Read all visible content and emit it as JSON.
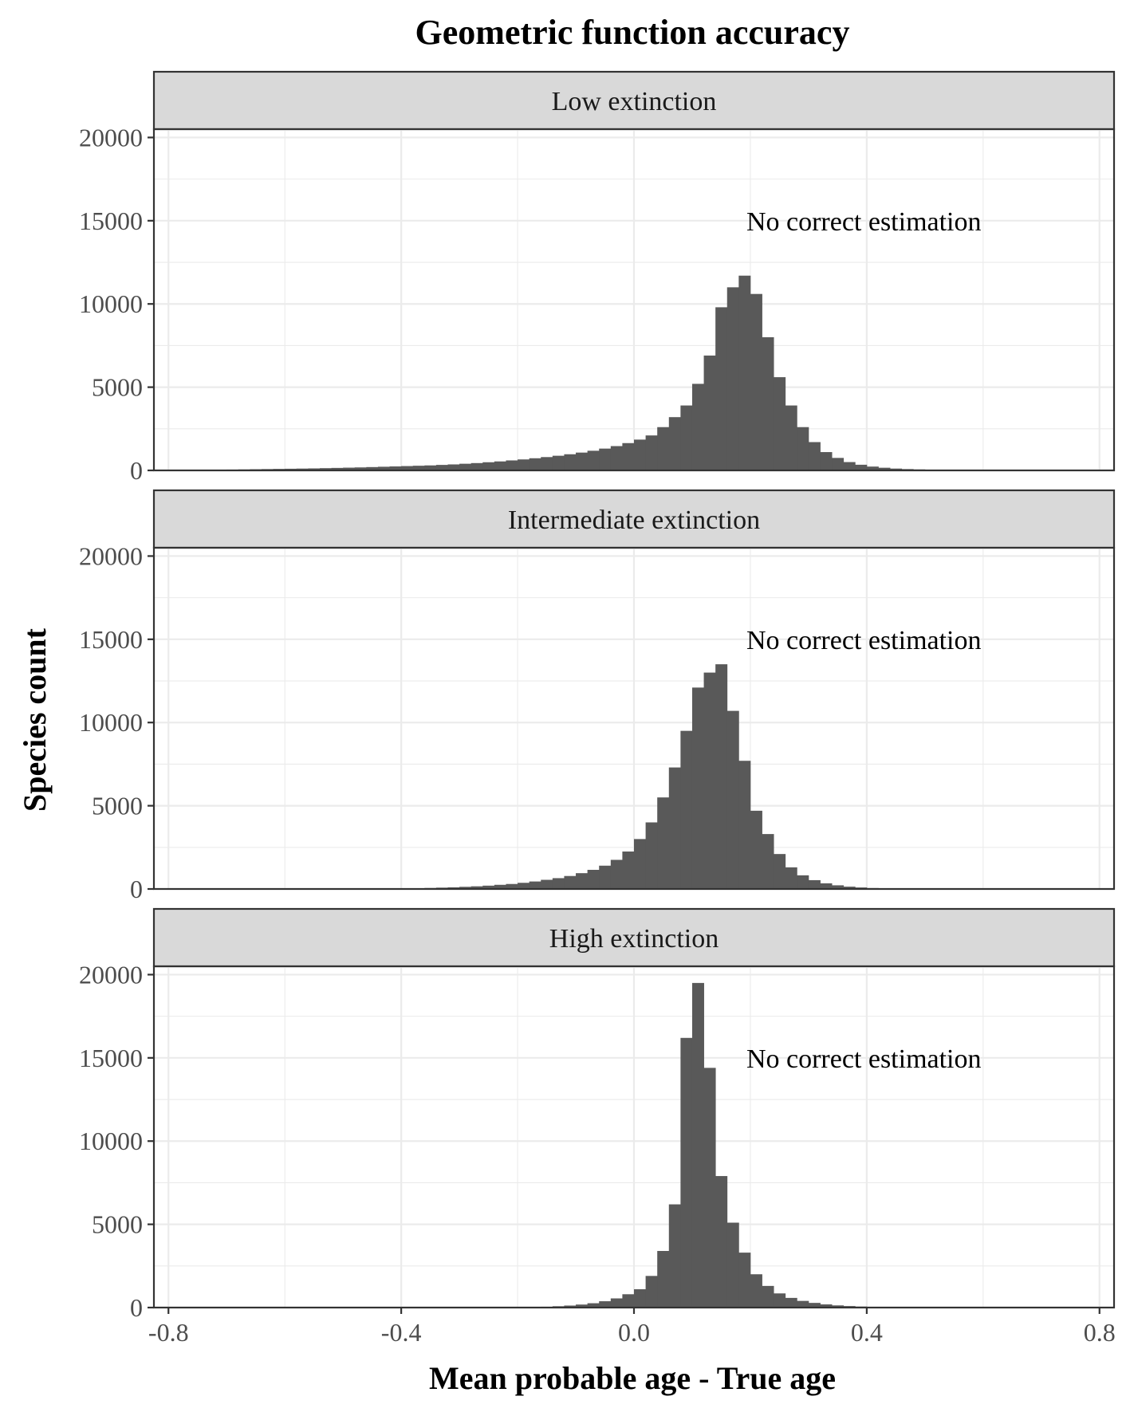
{
  "chart_data": {
    "type": "bar",
    "title": "Geometric function accuracy",
    "xlabel": "Mean probable age - True age",
    "ylabel": "Species count",
    "xlim": [
      -0.825,
      0.825
    ],
    "ylim": [
      0,
      20500
    ],
    "x_ticks": [
      -0.8,
      -0.4,
      0.0,
      0.4,
      0.8
    ],
    "x_tick_labels": [
      "-0.8",
      "-0.4",
      "0.0",
      "0.4",
      "0.8"
    ],
    "y_ticks": [
      0,
      5000,
      10000,
      15000,
      20000
    ],
    "y_tick_labels": [
      "0",
      "5000",
      "10000",
      "15000",
      "20000"
    ],
    "grid": true,
    "bin_width": 0.02,
    "bin_start": -0.74,
    "panels": [
      {
        "label": "Low extinction",
        "annotation": "No correct estimation",
        "values": [
          30,
          40,
          50,
          60,
          70,
          80,
          90,
          100,
          110,
          120,
          135,
          150,
          165,
          180,
          200,
          220,
          240,
          260,
          280,
          300,
          330,
          360,
          400,
          440,
          490,
          540,
          600,
          660,
          730,
          800,
          880,
          970,
          1070,
          1180,
          1310,
          1460,
          1640,
          1850,
          2100,
          2600,
          3200,
          3900,
          5200,
          6900,
          9800,
          11000,
          11700,
          10600,
          8000,
          5600,
          3900,
          2600,
          1700,
          1100,
          750,
          500,
          340,
          230,
          160,
          110,
          80,
          60,
          45,
          35,
          25,
          20,
          15,
          12,
          10,
          8,
          6,
          4,
          3
        ]
      },
      {
        "label": "Intermediate extinction",
        "annotation": "No correct estimation",
        "values": [
          0,
          0,
          0,
          0,
          0,
          0,
          0,
          0,
          0,
          0,
          0,
          0,
          0,
          0,
          10,
          15,
          25,
          35,
          45,
          60,
          80,
          100,
          130,
          160,
          200,
          250,
          300,
          370,
          450,
          550,
          650,
          780,
          950,
          1150,
          1400,
          1750,
          2250,
          3000,
          4000,
          5500,
          7300,
          9500,
          12100,
          13000,
          13500,
          10700,
          7700,
          4700,
          3300,
          2100,
          1300,
          820,
          530,
          340,
          220,
          140,
          90,
          55,
          35,
          20,
          10,
          5
        ]
      },
      {
        "label": "High extinction",
        "annotation": "No correct estimation",
        "values": [
          0,
          0,
          0,
          0,
          0,
          0,
          0,
          0,
          0,
          0,
          0,
          0,
          0,
          0,
          0,
          0,
          0,
          0,
          0,
          0,
          0,
          0,
          0,
          0,
          0,
          0,
          0,
          0,
          30,
          50,
          80,
          120,
          180,
          260,
          380,
          550,
          800,
          1100,
          1900,
          3400,
          6200,
          16200,
          19500,
          14400,
          7900,
          5100,
          3300,
          2000,
          1300,
          850,
          580,
          400,
          280,
          190,
          130,
          90,
          60,
          40,
          25,
          15,
          10,
          5,
          3
        ]
      }
    ]
  }
}
